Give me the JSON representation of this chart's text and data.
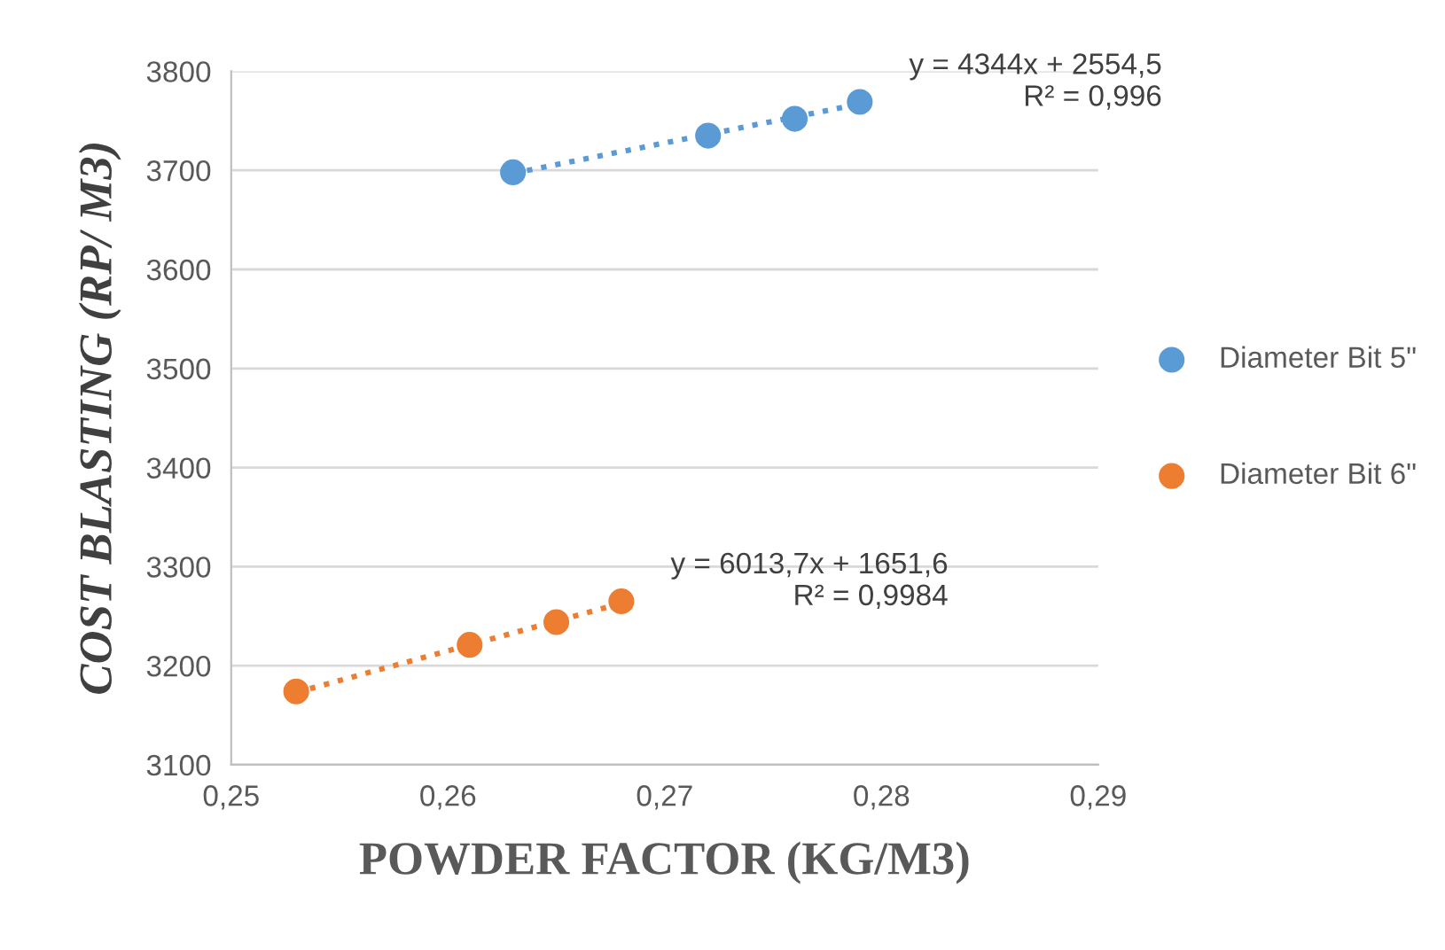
{
  "chart_data": {
    "type": "scatter",
    "xlabel": "POWDER FACTOR (KG/M3)",
    "ylabel": "COST BLASTING (RP/ M3)",
    "xlim": [
      0.25,
      0.29
    ],
    "xticks": [
      {
        "value": 0.25,
        "label": "0,25"
      },
      {
        "value": 0.26,
        "label": "0,26"
      },
      {
        "value": 0.27,
        "label": "0,27"
      },
      {
        "value": 0.28,
        "label": "0,28"
      },
      {
        "value": 0.29,
        "label": "0,29"
      }
    ],
    "ylim": [
      3100,
      3800
    ],
    "yticks": [
      3100,
      3200,
      3300,
      3400,
      3500,
      3600,
      3700,
      3800
    ],
    "grid": "y",
    "legend": "right",
    "marker": "circle",
    "series": [
      {
        "name": "Diameter Bit 5\"",
        "color": "#5b9bd5",
        "x": [
          0.263,
          0.272,
          0.276,
          0.279
        ],
        "values": [
          3698,
          3735,
          3752,
          3769
        ]
      },
      {
        "name": "Diameter Bit 6\"",
        "color": "#ed7d31",
        "x": [
          0.253,
          0.261,
          0.265,
          0.268
        ],
        "values": [
          3174,
          3221,
          3244,
          3265
        ]
      },
      {
        "type": "line",
        "line_style": "dotted",
        "marker": "none",
        "color": "#5b9bd5",
        "x": [
          0.263,
          0.279
        ],
        "values": [
          3697,
          3767
        ]
      },
      {
        "type": "line",
        "line_style": "dotted",
        "marker": "none",
        "color": "#ed7d31",
        "x": [
          0.253,
          0.268
        ],
        "values": [
          3173,
          3263
        ]
      }
    ],
    "annotations": [
      {
        "text": "y = 4344x + 2554,5\nR² = 0,996",
        "x": 0.279,
        "y": 3769
      },
      {
        "text": "y = 6013,7x + 1651,6\nR² = 0,9984",
        "x": 0.268,
        "y": 3265
      }
    ]
  }
}
